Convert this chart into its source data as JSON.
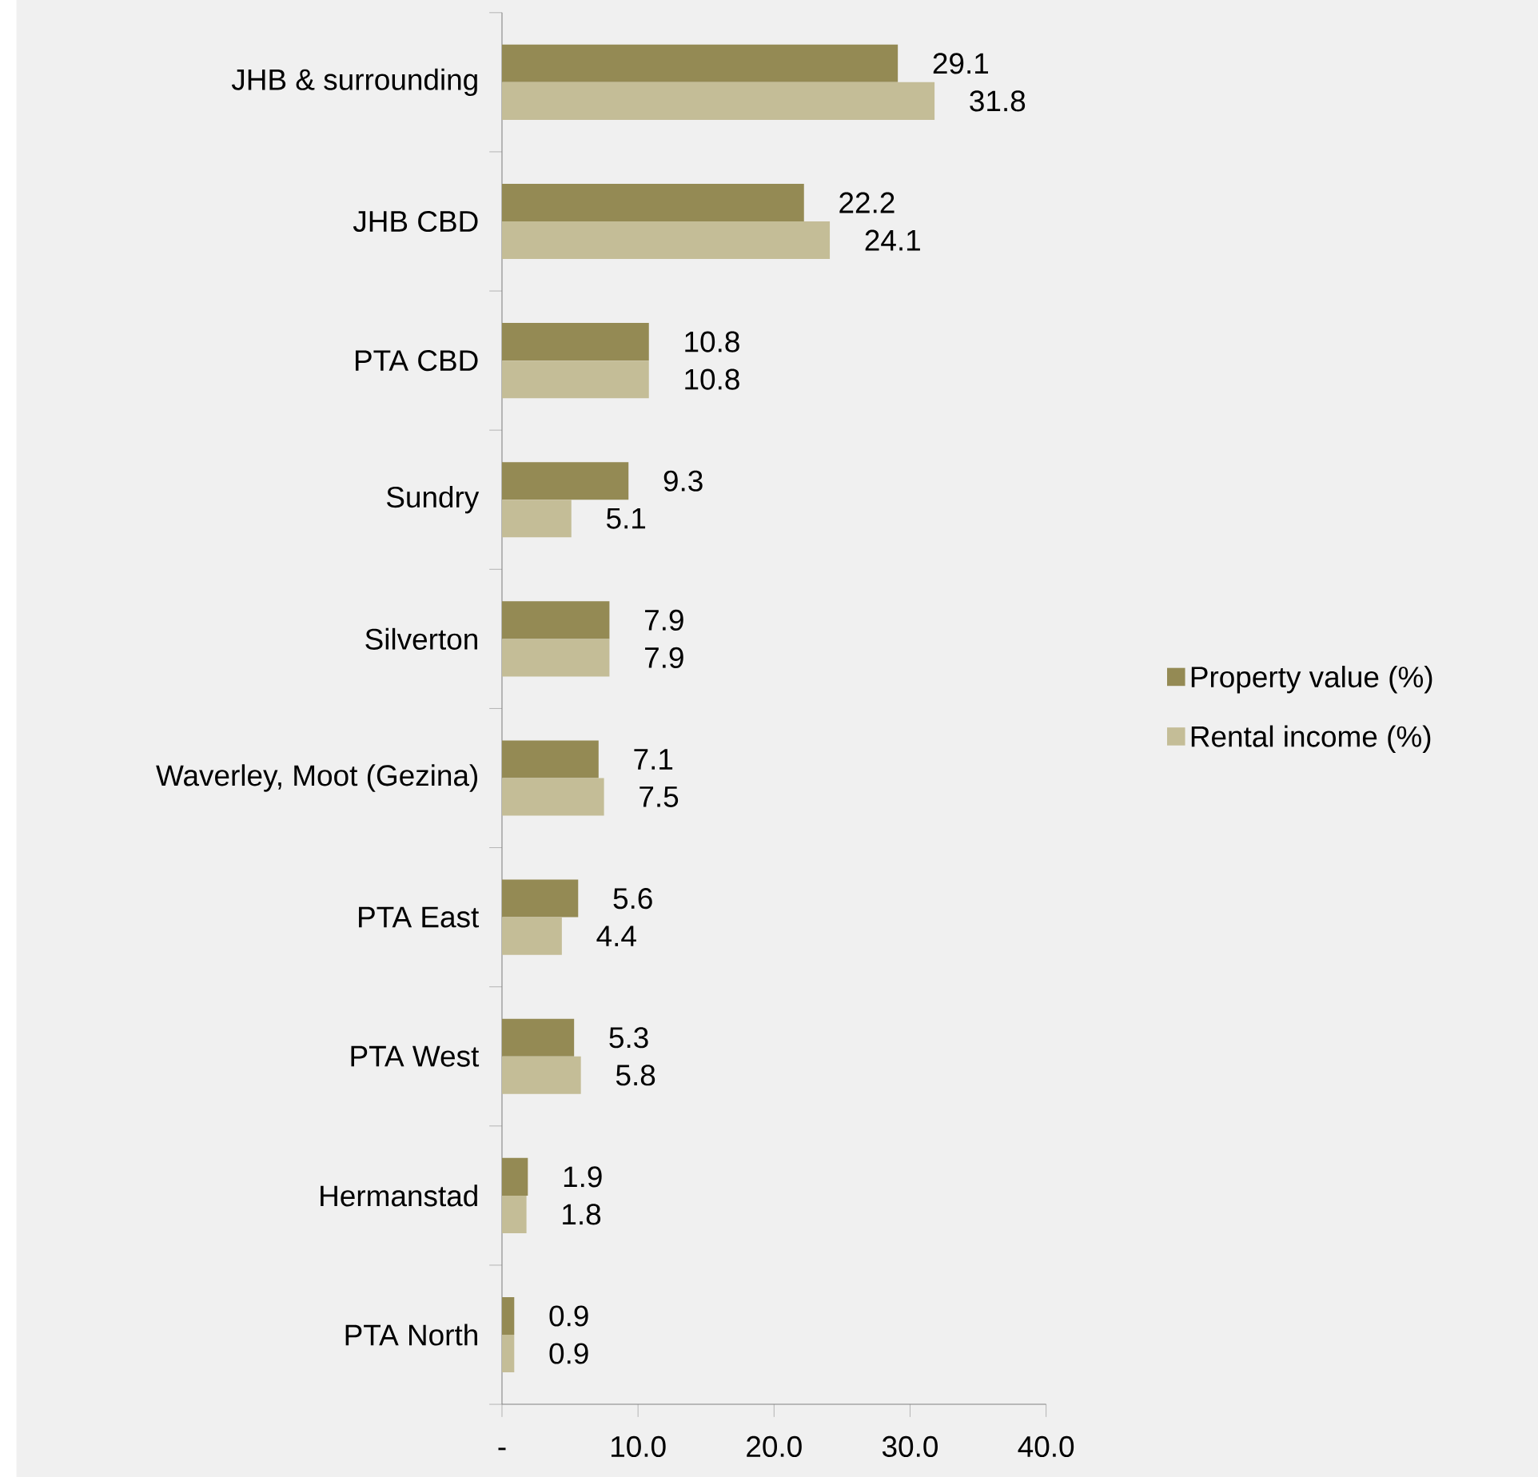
{
  "chart_data": {
    "type": "bar",
    "orientation": "horizontal",
    "categories": [
      "JHB & surrounding",
      "JHB CBD",
      "PTA CBD",
      "Sundry",
      "Silverton",
      "Waverley, Moot (Gezina)",
      "PTA East",
      "PTA West",
      "Hermanstad",
      "PTA North"
    ],
    "series": [
      {
        "name": "Property value (%)",
        "color": "#948a54",
        "values": [
          29.1,
          22.2,
          10.8,
          9.3,
          7.9,
          7.1,
          5.6,
          5.3,
          1.9,
          0.9
        ],
        "value_labels": [
          "29.1",
          "22.2",
          "10.8",
          "9.3",
          "7.9",
          "7.1",
          "5.6",
          "5.3",
          "1.9",
          "0.9"
        ]
      },
      {
        "name": "Rental income (%)",
        "color": "#c4bd97",
        "values": [
          31.8,
          24.1,
          10.8,
          5.1,
          7.9,
          7.5,
          4.4,
          5.8,
          1.8,
          0.9
        ],
        "value_labels": [
          "31.8",
          "24.1",
          "10.8",
          "5.1",
          "7.9",
          "7.5",
          "4.4",
          "5.8",
          "1.8",
          "0.9"
        ]
      }
    ],
    "xlim": [
      0,
      40
    ],
    "xticks": [
      {
        "value": 0,
        "label": "-"
      },
      {
        "value": 10,
        "label": "10.0"
      },
      {
        "value": 20,
        "label": "20.0"
      },
      {
        "value": 30,
        "label": "30.0"
      },
      {
        "value": 40,
        "label": "40.0"
      }
    ],
    "legend": "right",
    "grid": false
  }
}
